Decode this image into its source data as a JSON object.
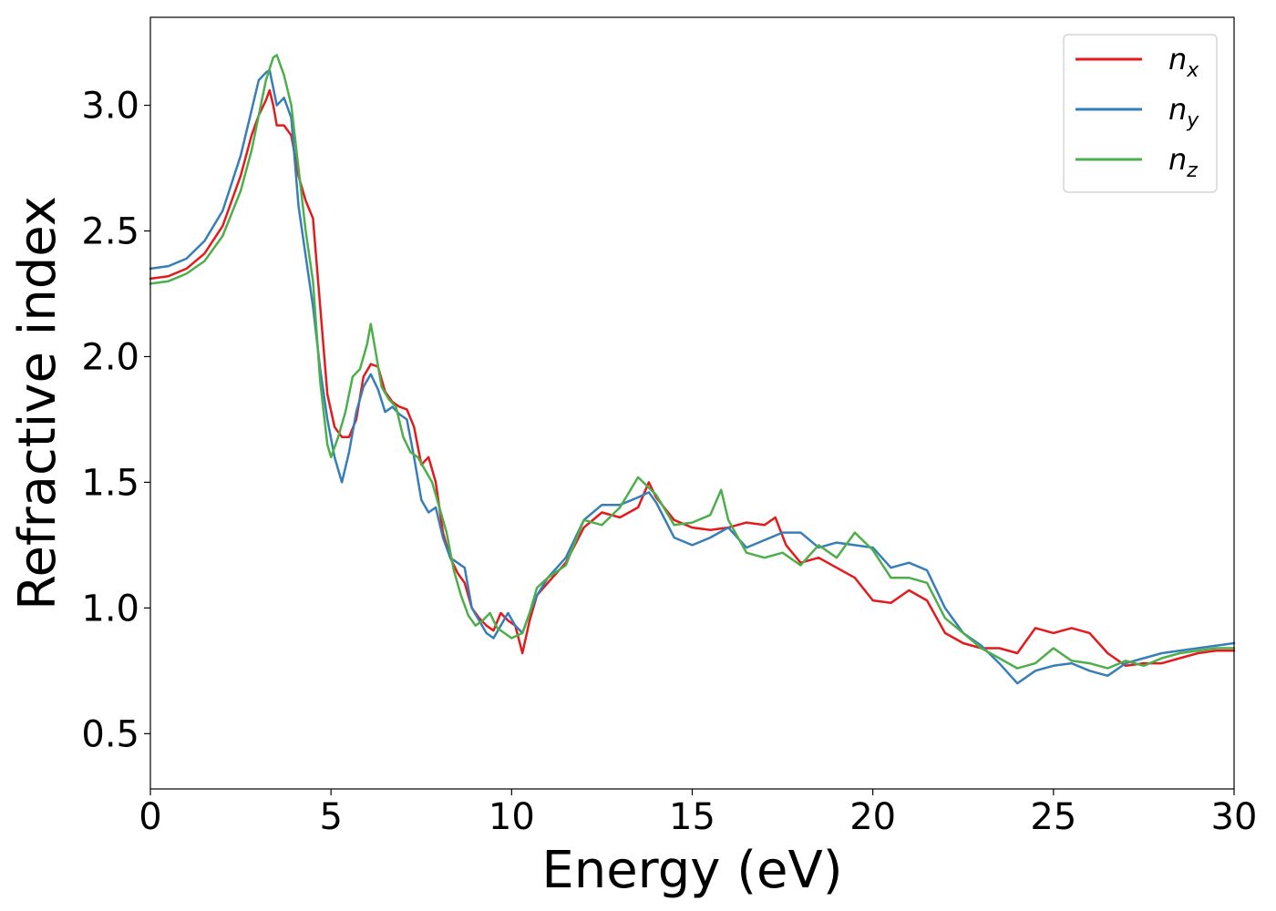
{
  "chart_data": {
    "type": "line",
    "xlabel": "Energy (eV)",
    "ylabel": "Refractive index",
    "xlim": [
      0,
      30
    ],
    "ylim": [
      0.28,
      3.35
    ],
    "xticks": [
      0,
      5,
      10,
      15,
      20,
      25,
      30
    ],
    "yticks": [
      0.5,
      1.0,
      1.5,
      2.0,
      2.5,
      3.0
    ],
    "xtick_labels": [
      "0",
      "5",
      "10",
      "15",
      "20",
      "25",
      "30"
    ],
    "ytick_labels": [
      "0.5",
      "1.0",
      "1.5",
      "2.0",
      "2.5",
      "3.0"
    ],
    "grid": false,
    "legend_position": "top-right",
    "series": [
      {
        "name": "n_x",
        "name_base": "n",
        "name_sub": "x",
        "color": "#e41a1c",
        "points": [
          [
            0,
            2.31
          ],
          [
            0.5,
            2.32
          ],
          [
            1,
            2.35
          ],
          [
            1.5,
            2.41
          ],
          [
            2,
            2.52
          ],
          [
            2.5,
            2.72
          ],
          [
            2.8,
            2.88
          ],
          [
            3.0,
            2.96
          ],
          [
            3.2,
            3.02
          ],
          [
            3.3,
            3.06
          ],
          [
            3.4,
            3.0
          ],
          [
            3.5,
            2.92
          ],
          [
            3.7,
            2.92
          ],
          [
            3.9,
            2.88
          ],
          [
            4.1,
            2.72
          ],
          [
            4.3,
            2.62
          ],
          [
            4.5,
            2.55
          ],
          [
            4.7,
            2.2
          ],
          [
            4.9,
            1.85
          ],
          [
            5.1,
            1.72
          ],
          [
            5.3,
            1.68
          ],
          [
            5.5,
            1.68
          ],
          [
            5.7,
            1.75
          ],
          [
            5.9,
            1.92
          ],
          [
            6.1,
            1.97
          ],
          [
            6.3,
            1.96
          ],
          [
            6.5,
            1.86
          ],
          [
            6.7,
            1.82
          ],
          [
            6.9,
            1.8
          ],
          [
            7.1,
            1.79
          ],
          [
            7.3,
            1.72
          ],
          [
            7.5,
            1.57
          ],
          [
            7.7,
            1.6
          ],
          [
            7.9,
            1.5
          ],
          [
            8.1,
            1.3
          ],
          [
            8.3,
            1.2
          ],
          [
            8.5,
            1.14
          ],
          [
            8.7,
            1.1
          ],
          [
            8.9,
            1.0
          ],
          [
            9.1,
            0.96
          ],
          [
            9.3,
            0.93
          ],
          [
            9.5,
            0.91
          ],
          [
            9.7,
            0.98
          ],
          [
            9.9,
            0.95
          ],
          [
            10.1,
            0.93
          ],
          [
            10.3,
            0.82
          ],
          [
            10.5,
            0.95
          ],
          [
            10.7,
            1.05
          ],
          [
            11,
            1.1
          ],
          [
            11.5,
            1.18
          ],
          [
            12,
            1.32
          ],
          [
            12.5,
            1.38
          ],
          [
            13,
            1.36
          ],
          [
            13.5,
            1.4
          ],
          [
            13.8,
            1.5
          ],
          [
            14,
            1.44
          ],
          [
            14.5,
            1.35
          ],
          [
            15,
            1.32
          ],
          [
            15.5,
            1.31
          ],
          [
            16,
            1.32
          ],
          [
            16.5,
            1.34
          ],
          [
            17,
            1.33
          ],
          [
            17.3,
            1.36
          ],
          [
            17.6,
            1.25
          ],
          [
            18,
            1.18
          ],
          [
            18.5,
            1.2
          ],
          [
            19,
            1.16
          ],
          [
            19.5,
            1.12
          ],
          [
            20,
            1.03
          ],
          [
            20.5,
            1.02
          ],
          [
            21,
            1.07
          ],
          [
            21.5,
            1.03
          ],
          [
            22,
            0.9
          ],
          [
            22.5,
            0.86
          ],
          [
            23,
            0.84
          ],
          [
            23.5,
            0.84
          ],
          [
            24,
            0.82
          ],
          [
            24.5,
            0.92
          ],
          [
            25,
            0.9
          ],
          [
            25.5,
            0.92
          ],
          [
            26,
            0.9
          ],
          [
            26.5,
            0.82
          ],
          [
            27,
            0.77
          ],
          [
            27.5,
            0.78
          ],
          [
            28,
            0.78
          ],
          [
            28.5,
            0.8
          ],
          [
            29,
            0.82
          ],
          [
            29.5,
            0.83
          ],
          [
            30,
            0.83
          ]
        ]
      },
      {
        "name": "n_y",
        "name_base": "n",
        "name_sub": "y",
        "color": "#377eb8",
        "points": [
          [
            0,
            2.35
          ],
          [
            0.5,
            2.36
          ],
          [
            1,
            2.39
          ],
          [
            1.5,
            2.46
          ],
          [
            2,
            2.58
          ],
          [
            2.5,
            2.8
          ],
          [
            2.8,
            2.98
          ],
          [
            3.0,
            3.1
          ],
          [
            3.2,
            3.13
          ],
          [
            3.3,
            3.14
          ],
          [
            3.5,
            3.0
          ],
          [
            3.7,
            3.03
          ],
          [
            3.9,
            2.95
          ],
          [
            4.1,
            2.6
          ],
          [
            4.3,
            2.4
          ],
          [
            4.5,
            2.2
          ],
          [
            4.7,
            1.95
          ],
          [
            4.9,
            1.75
          ],
          [
            5.1,
            1.6
          ],
          [
            5.3,
            1.5
          ],
          [
            5.5,
            1.62
          ],
          [
            5.7,
            1.78
          ],
          [
            5.9,
            1.88
          ],
          [
            6.1,
            1.93
          ],
          [
            6.3,
            1.87
          ],
          [
            6.5,
            1.78
          ],
          [
            6.7,
            1.8
          ],
          [
            6.9,
            1.77
          ],
          [
            7.1,
            1.75
          ],
          [
            7.3,
            1.6
          ],
          [
            7.5,
            1.43
          ],
          [
            7.7,
            1.38
          ],
          [
            7.9,
            1.4
          ],
          [
            8.1,
            1.28
          ],
          [
            8.3,
            1.2
          ],
          [
            8.5,
            1.18
          ],
          [
            8.7,
            1.16
          ],
          [
            8.9,
            1.0
          ],
          [
            9.1,
            0.95
          ],
          [
            9.3,
            0.9
          ],
          [
            9.5,
            0.88
          ],
          [
            9.7,
            0.93
          ],
          [
            9.9,
            0.98
          ],
          [
            10.1,
            0.93
          ],
          [
            10.3,
            0.9
          ],
          [
            10.5,
            0.98
          ],
          [
            10.7,
            1.05
          ],
          [
            11,
            1.12
          ],
          [
            11.5,
            1.2
          ],
          [
            12,
            1.35
          ],
          [
            12.5,
            1.41
          ],
          [
            13,
            1.41
          ],
          [
            13.5,
            1.44
          ],
          [
            13.8,
            1.46
          ],
          [
            14,
            1.42
          ],
          [
            14.5,
            1.28
          ],
          [
            15,
            1.25
          ],
          [
            15.5,
            1.28
          ],
          [
            16,
            1.32
          ],
          [
            16.5,
            1.24
          ],
          [
            17,
            1.27
          ],
          [
            17.5,
            1.3
          ],
          [
            18,
            1.3
          ],
          [
            18.5,
            1.24
          ],
          [
            19,
            1.26
          ],
          [
            19.5,
            1.25
          ],
          [
            20,
            1.24
          ],
          [
            20.5,
            1.16
          ],
          [
            21,
            1.18
          ],
          [
            21.5,
            1.15
          ],
          [
            22,
            1.0
          ],
          [
            22.5,
            0.9
          ],
          [
            23,
            0.85
          ],
          [
            23.5,
            0.78
          ],
          [
            24,
            0.7
          ],
          [
            24.5,
            0.75
          ],
          [
            25,
            0.77
          ],
          [
            25.5,
            0.78
          ],
          [
            26,
            0.75
          ],
          [
            26.5,
            0.73
          ],
          [
            27,
            0.78
          ],
          [
            27.5,
            0.8
          ],
          [
            28,
            0.82
          ],
          [
            28.5,
            0.83
          ],
          [
            29,
            0.84
          ],
          [
            29.5,
            0.85
          ],
          [
            30,
            0.86
          ]
        ]
      },
      {
        "name": "n_z",
        "name_base": "n",
        "name_sub": "z",
        "color": "#4daf4a",
        "points": [
          [
            0,
            2.29
          ],
          [
            0.5,
            2.3
          ],
          [
            1,
            2.33
          ],
          [
            1.5,
            2.38
          ],
          [
            2,
            2.48
          ],
          [
            2.5,
            2.66
          ],
          [
            2.8,
            2.82
          ],
          [
            3.0,
            2.96
          ],
          [
            3.2,
            3.1
          ],
          [
            3.4,
            3.19
          ],
          [
            3.5,
            3.2
          ],
          [
            3.7,
            3.12
          ],
          [
            3.9,
            3.0
          ],
          [
            4.1,
            2.75
          ],
          [
            4.3,
            2.5
          ],
          [
            4.5,
            2.3
          ],
          [
            4.7,
            1.9
          ],
          [
            4.9,
            1.65
          ],
          [
            5.0,
            1.6
          ],
          [
            5.2,
            1.68
          ],
          [
            5.4,
            1.78
          ],
          [
            5.6,
            1.92
          ],
          [
            5.8,
            1.95
          ],
          [
            6.0,
            2.05
          ],
          [
            6.1,
            2.13
          ],
          [
            6.2,
            2.05
          ],
          [
            6.4,
            1.88
          ],
          [
            6.6,
            1.83
          ],
          [
            6.8,
            1.8
          ],
          [
            7.0,
            1.68
          ],
          [
            7.2,
            1.62
          ],
          [
            7.4,
            1.6
          ],
          [
            7.6,
            1.55
          ],
          [
            7.8,
            1.5
          ],
          [
            8.0,
            1.4
          ],
          [
            8.2,
            1.3
          ],
          [
            8.4,
            1.15
          ],
          [
            8.6,
            1.05
          ],
          [
            8.8,
            0.97
          ],
          [
            9.0,
            0.93
          ],
          [
            9.2,
            0.95
          ],
          [
            9.4,
            0.98
          ],
          [
            9.6,
            0.92
          ],
          [
            9.8,
            0.9
          ],
          [
            10.0,
            0.88
          ],
          [
            10.3,
            0.9
          ],
          [
            10.5,
            0.98
          ],
          [
            10.7,
            1.08
          ],
          [
            11,
            1.12
          ],
          [
            11.5,
            1.17
          ],
          [
            12,
            1.35
          ],
          [
            12.5,
            1.33
          ],
          [
            13,
            1.4
          ],
          [
            13.5,
            1.52
          ],
          [
            14,
            1.45
          ],
          [
            14.5,
            1.33
          ],
          [
            15,
            1.34
          ],
          [
            15.5,
            1.37
          ],
          [
            15.8,
            1.47
          ],
          [
            16,
            1.35
          ],
          [
            16.5,
            1.22
          ],
          [
            17,
            1.2
          ],
          [
            17.5,
            1.22
          ],
          [
            18,
            1.17
          ],
          [
            18.5,
            1.25
          ],
          [
            19,
            1.2
          ],
          [
            19.5,
            1.3
          ],
          [
            20,
            1.23
          ],
          [
            20.5,
            1.12
          ],
          [
            21,
            1.12
          ],
          [
            21.5,
            1.1
          ],
          [
            22,
            0.96
          ],
          [
            22.5,
            0.9
          ],
          [
            23,
            0.84
          ],
          [
            23.5,
            0.8
          ],
          [
            24,
            0.76
          ],
          [
            24.5,
            0.78
          ],
          [
            25,
            0.84
          ],
          [
            25.5,
            0.79
          ],
          [
            26,
            0.78
          ],
          [
            26.5,
            0.76
          ],
          [
            27,
            0.79
          ],
          [
            27.5,
            0.77
          ],
          [
            28,
            0.8
          ],
          [
            28.5,
            0.82
          ],
          [
            29,
            0.83
          ],
          [
            29.5,
            0.84
          ],
          [
            30,
            0.84
          ]
        ]
      }
    ]
  },
  "colors": {
    "axis": "#000000",
    "legend_border": "#cccccc",
    "background": "#ffffff"
  }
}
